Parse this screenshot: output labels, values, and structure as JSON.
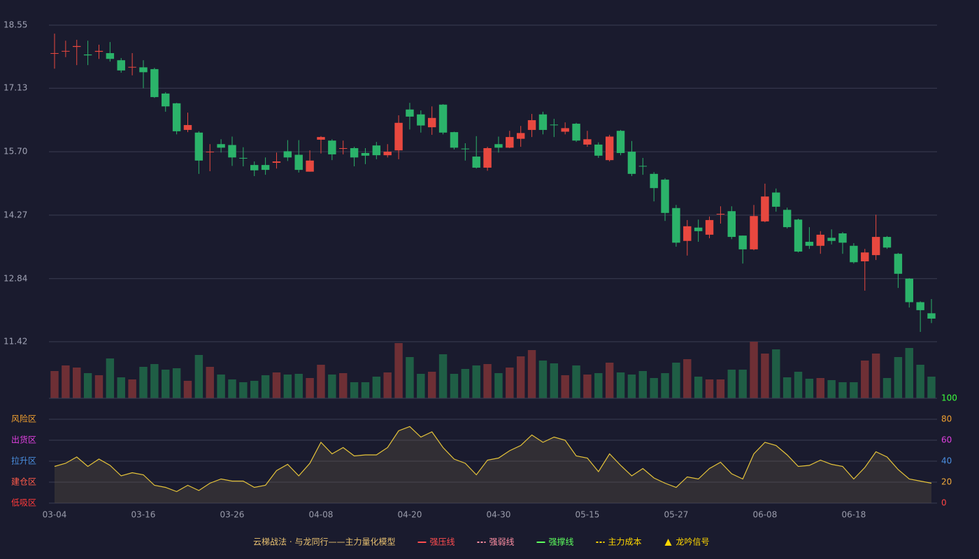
{
  "chart_data": [
    {
      "type": "candlestick",
      "categories": [
        "03-04",
        null,
        null,
        null,
        null,
        null,
        null,
        null,
        "03-16",
        null,
        null,
        null,
        null,
        null,
        null,
        null,
        "03-26",
        null,
        null,
        null,
        null,
        null,
        null,
        null,
        "04-08",
        null,
        null,
        null,
        null,
        null,
        null,
        null,
        "04-20",
        null,
        null,
        null,
        null,
        null,
        null,
        null,
        "04-30",
        null,
        null,
        null,
        null,
        null,
        null,
        null,
        "05-15",
        null,
        null,
        null,
        null,
        null,
        null,
        null,
        "05-27",
        null,
        null,
        null,
        null,
        null,
        null,
        null,
        "06-08",
        null,
        null,
        null,
        null,
        null,
        null,
        null,
        "06-18",
        null,
        null,
        null,
        null,
        null,
        null,
        null
      ],
      "open": [
        17.91,
        17.96,
        18.06,
        17.89,
        17.95,
        17.92,
        17.76,
        17.6,
        17.6,
        17.56,
        17.01,
        16.79,
        16.19,
        16.13,
        15.69,
        15.87,
        15.85,
        15.56,
        15.4,
        15.4,
        15.45,
        15.71,
        15.63,
        15.25,
        15.97,
        15.95,
        15.77,
        15.78,
        15.67,
        15.84,
        15.62,
        15.73,
        16.65,
        16.54,
        16.25,
        16.76,
        16.14,
        15.77,
        15.59,
        15.34,
        15.87,
        15.79,
        15.99,
        16.19,
        16.54,
        16.31,
        16.15,
        16.33,
        15.86,
        15.86,
        15.51,
        16.17,
        15.7,
        15.38,
        15.2,
        15.07,
        14.43,
        13.69,
        13.99,
        13.83,
        14.29,
        14.36,
        13.81,
        13.5,
        14.13,
        14.78,
        14.39,
        14.17,
        13.67,
        13.58,
        13.76,
        13.86,
        13.58,
        13.23,
        13.37,
        13.78,
        13.4,
        12.84,
        12.31,
        12.06
      ],
      "high": [
        18.36,
        18.2,
        18.22,
        18.2,
        18.11,
        18.17,
        17.81,
        17.92,
        17.76,
        17.59,
        17.04,
        16.8,
        16.58,
        16.16,
        15.87,
        15.98,
        16.04,
        15.8,
        15.48,
        15.57,
        15.68,
        15.96,
        15.96,
        15.73,
        16.05,
        15.98,
        15.95,
        15.81,
        15.78,
        15.92,
        15.87,
        16.52,
        16.8,
        16.63,
        16.72,
        16.77,
        16.15,
        15.89,
        16.05,
        15.81,
        16.04,
        16.17,
        16.28,
        16.55,
        16.6,
        16.44,
        16.36,
        16.35,
        16.17,
        15.91,
        16.08,
        16.19,
        15.94,
        15.56,
        15.24,
        15.1,
        14.5,
        14.16,
        14.17,
        14.24,
        14.47,
        14.47,
        13.81,
        14.5,
        14.98,
        14.87,
        14.44,
        14.19,
        14.0,
        13.91,
        13.95,
        13.89,
        13.64,
        13.51,
        14.28,
        13.8,
        13.42,
        12.85,
        12.33,
        12.38
      ],
      "low": [
        17.57,
        17.83,
        17.65,
        17.65,
        17.79,
        17.73,
        17.48,
        17.42,
        17.13,
        16.91,
        16.6,
        16.09,
        16.14,
        15.2,
        15.26,
        15.68,
        15.38,
        15.37,
        15.15,
        15.18,
        15.32,
        15.49,
        15.23,
        15.25,
        15.66,
        15.51,
        15.64,
        15.37,
        15.42,
        15.53,
        15.57,
        15.53,
        16.2,
        16.13,
        16.08,
        16.09,
        15.75,
        15.5,
        15.32,
        15.27,
        15.68,
        15.78,
        15.81,
        16.03,
        16.09,
        16.03,
        16.09,
        15.92,
        15.81,
        15.56,
        15.48,
        15.62,
        15.15,
        15.18,
        14.58,
        14.14,
        13.56,
        13.36,
        13.67,
        13.75,
        14.08,
        13.73,
        13.18,
        13.48,
        14.11,
        14.35,
        13.97,
        13.43,
        13.51,
        13.4,
        13.61,
        13.4,
        13.18,
        12.57,
        13.26,
        13.51,
        12.63,
        12.19,
        11.64,
        11.84
      ],
      "close": [
        17.92,
        17.97,
        18.08,
        17.87,
        17.97,
        17.79,
        17.53,
        17.61,
        17.49,
        16.93,
        16.72,
        16.16,
        16.3,
        15.5,
        15.7,
        15.79,
        15.57,
        15.55,
        15.28,
        15.29,
        15.48,
        15.57,
        15.29,
        15.5,
        16.03,
        15.64,
        15.78,
        15.57,
        15.61,
        15.62,
        15.7,
        16.35,
        16.49,
        16.29,
        16.46,
        16.13,
        15.79,
        15.76,
        15.34,
        15.78,
        15.79,
        16.03,
        16.12,
        16.41,
        16.19,
        16.3,
        16.23,
        15.95,
        15.98,
        15.61,
        16.04,
        15.67,
        15.2,
        15.37,
        14.88,
        14.32,
        13.65,
        14.02,
        13.91,
        14.16,
        14.3,
        13.78,
        13.5,
        14.25,
        14.69,
        14.46,
        14.0,
        13.45,
        13.58,
        13.83,
        13.69,
        13.65,
        13.21,
        13.43,
        13.78,
        13.54,
        12.95,
        12.31,
        12.13,
        11.94
      ],
      "up_color": "#e8483f",
      "down_color": "#2bb36a",
      "ylim": [
        11.42,
        18.55
      ],
      "yticks": [
        11.42,
        12.84,
        14.27,
        {
          "value": 15.7,
          "label": "15.70"
        },
        17.13,
        18.55
      ],
      "grid": true
    },
    {
      "type": "bar",
      "values": [
        39,
        47,
        44,
        36,
        33,
        57,
        30,
        27,
        45,
        49,
        41,
        43,
        25,
        62,
        45,
        34,
        27,
        23,
        25,
        33,
        37,
        34,
        35,
        29,
        48,
        34,
        36,
        23,
        23,
        31,
        37,
        79,
        59,
        35,
        38,
        63,
        35,
        42,
        47,
        49,
        36,
        44,
        60,
        69,
        54,
        50,
        33,
        47,
        34,
        36,
        51,
        37,
        34,
        39,
        29,
        36,
        51,
        56,
        31,
        27,
        27,
        41,
        41,
        81,
        64,
        70,
        30,
        38,
        28,
        29,
        26,
        23,
        23,
        54,
        64,
        29,
        59,
        72,
        48,
        31
      ],
      "up_color": "#6e2f35",
      "down_color": "#1f5e45"
    },
    {
      "type": "area",
      "values": [
        35,
        38,
        44,
        35,
        42,
        36,
        26,
        29,
        27,
        17,
        15,
        11,
        17,
        12,
        19,
        23,
        21,
        21,
        15,
        17,
        31,
        37,
        26,
        38,
        58,
        47,
        53,
        45,
        46,
        46,
        53,
        69,
        73,
        63,
        68,
        53,
        42,
        38,
        27,
        41,
        43,
        50,
        55,
        65,
        58,
        63,
        60,
        45,
        43,
        30,
        47,
        36,
        26,
        33,
        24,
        19,
        15,
        25,
        23,
        33,
        39,
        28,
        23,
        47,
        58,
        55,
        46,
        35,
        36,
        41,
        37,
        35,
        23,
        34,
        49,
        44,
        32,
        23,
        21,
        19
      ],
      "color": "#e6c43a",
      "ylim": [
        0,
        100
      ],
      "yticks": [
        {
          "value": 0,
          "label": "0",
          "color": "#ff4444"
        },
        {
          "value": 20,
          "label": "20",
          "color": "#f0a83a"
        },
        {
          "value": 40,
          "label": "40",
          "color": "#4a8fe0"
        },
        {
          "value": 60,
          "label": "60",
          "color": "#e040e0"
        },
        {
          "value": 80,
          "label": "80",
          "color": "#f0a030"
        },
        {
          "value": 100,
          "label": "100",
          "color": "#3cff3c"
        }
      ],
      "zones": [
        {
          "value": 80,
          "label": "风险区",
          "color": "#f0a030"
        },
        {
          "value": 60,
          "label": "出货区",
          "color": "#e040e0"
        },
        {
          "value": 40,
          "label": "拉升区",
          "color": "#4a8fe0"
        },
        {
          "value": 20,
          "label": "建仓区",
          "color": "#ff5a4a"
        },
        {
          "value": 0,
          "label": "低吸区",
          "color": "#ff3a3a"
        }
      ],
      "grid": true
    }
  ],
  "legend": {
    "title": "云梯战法 · 与龙同行——主力量化模型",
    "title_color": "#e8c070",
    "items": [
      {
        "name": "强压线",
        "color": "#ff4d4f",
        "style": "solid"
      },
      {
        "name": "强弱线",
        "color": "#ff8fa3",
        "style": "dashed"
      },
      {
        "name": "强撑线",
        "color": "#5dff5d",
        "style": "solid"
      },
      {
        "name": "主力成本",
        "color": "#ffd700",
        "style": "dashed"
      },
      {
        "name": "龙吟信号",
        "color": "#ffd700",
        "style": "triangle"
      }
    ]
  }
}
